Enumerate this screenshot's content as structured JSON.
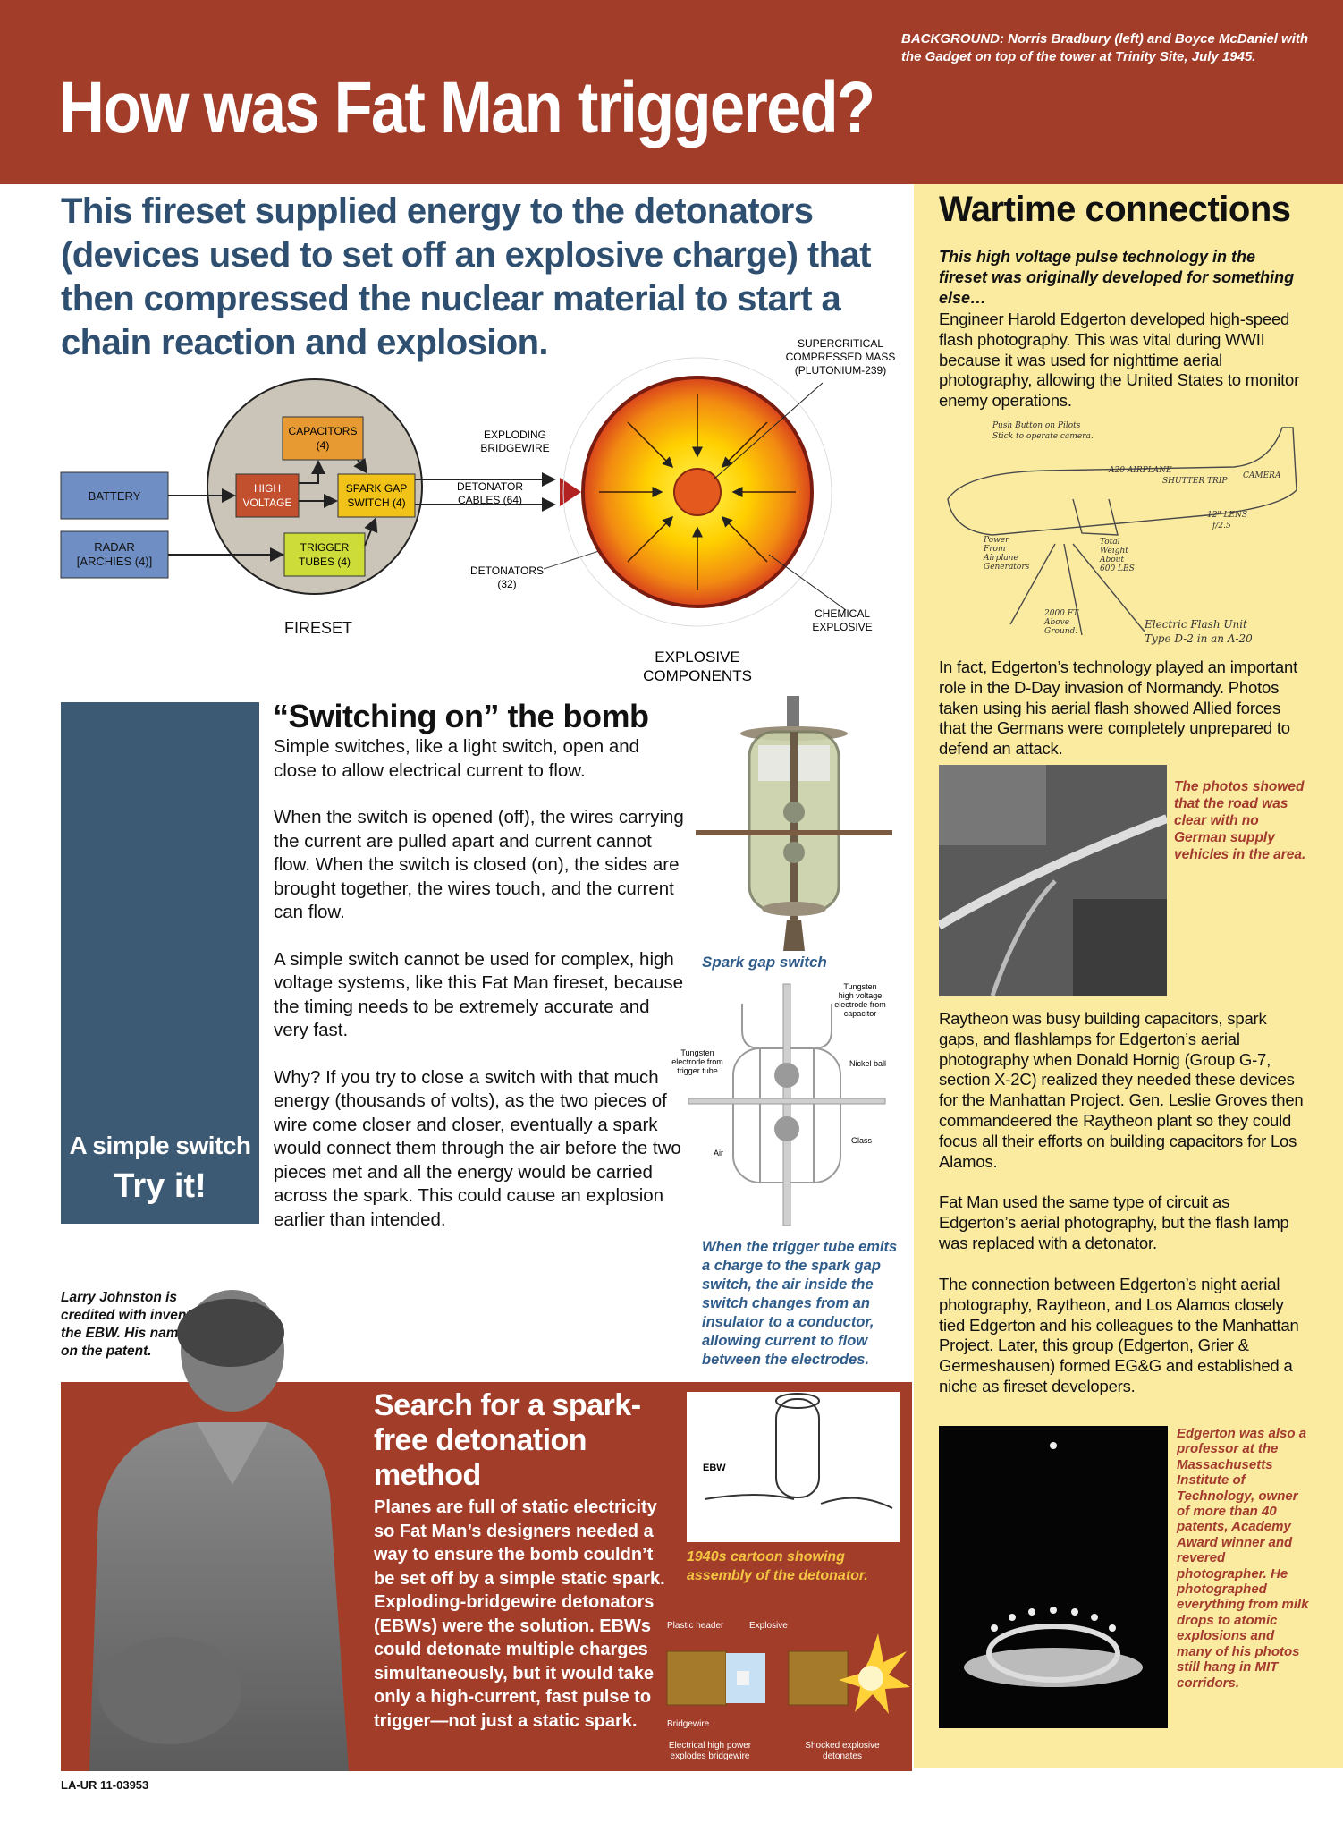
{
  "header": {
    "background_caption": "BACKGROUND:  Norris Bradbury (left) and Boyce McDaniel with the Gadget on top of the tower at Trinity Site, July 1945.",
    "title": "How was Fat Man triggered?"
  },
  "intro": {
    "text": "This fireset supplied energy to the detonators (devices used to set off an explosive charge) that then compressed the nuclear material to start a chain reaction and explosion."
  },
  "diagram": {
    "battery": "BATTERY",
    "radar_line1": "RADAR",
    "radar_line2": "[ARCHIES (4)]",
    "capacitors_line1": "CAPACITORS",
    "capacitors_line2": "(4)",
    "high_voltage_line1": "HIGH",
    "high_voltage_line2": "VOLTAGE",
    "spark_gap_line1": "SPARK GAP",
    "spark_gap_line2": "SWITCH (4)",
    "trigger_line1": "TRIGGER",
    "trigger_line2": "TUBES (4)",
    "fireset": "FIRESET",
    "exploding_line1": "EXPLODING",
    "exploding_line2": "BRIDGEWIRE",
    "detonator_cables_line1": "DETONATOR",
    "detonator_cables_line2": "CABLES (64)",
    "detonators_line1": "DETONATORS",
    "detonators_line2": "(32)",
    "supercritical_line1": "SUPERCRITICAL",
    "supercritical_line2": "COMPRESSED MASS",
    "supercritical_line3": "(PLUTONIUM-239)",
    "chemical_line1": "CHEMICAL",
    "chemical_line2": "EXPLOSIVE",
    "explosive_line1": "EXPLOSIVE",
    "explosive_line2": "COMPONENTS",
    "colors": {
      "blue_box": "#6f8fc4",
      "orange_box": "#e79a32",
      "red_box": "#c2502f",
      "yellow_box": "#cddc39",
      "circle": "#cbc4b8"
    }
  },
  "switching": {
    "panel_caption1": "A simple switch",
    "panel_caption2": "Try it!",
    "title": "“Switching on” the bomb",
    "paragraphs": [
      "Simple switches, like a light switch, open and close to allow electrical current to flow.",
      "When the switch is opened (off), the wires carrying the current are pulled apart and current cannot flow. When the switch is closed (on), the sides are brought together, the wires touch, and the current can flow.",
      "A simple switch cannot be used for complex, high voltage systems, like this Fat Man fireset, because the timing needs to be extremely accurate and very fast.",
      "Why? If you try to close a switch with that much energy (thousands of volts), as the two pieces of wire come closer and closer, eventually a spark would connect them through the air before the two pieces met and all the energy would be carried across the spark. This could cause an explosion earlier than intended."
    ],
    "spark_gap_caption": "Spark gap switch",
    "drawing_labels": {
      "tungsten_cap_1": "Tungsten",
      "tungsten_cap_2": "high voltage",
      "tungsten_cap_3": "electrode from",
      "tungsten_cap_4": "capacitor",
      "tungsten_trig_1": "Tungsten",
      "tungsten_trig_2": "electrode from",
      "tungsten_trig_3": "trigger tube",
      "nickel": "Nickel ball",
      "glass": "Glass",
      "air": "Air"
    },
    "trigger_caption": "When the trigger tube emits a charge to the spark gap switch, the air inside the switch changes from an insulator to a conductor, allowing current to flow between the electrodes."
  },
  "johnston": {
    "caption": "Larry Johnston is credited with inventing the EBW. His name is on the patent."
  },
  "search": {
    "title": "Search for a spark-free detonation method",
    "body": "Planes are full of static electricity so Fat Man’s designers needed a way to ensure the bomb couldn’t be set off by a simple static spark. Exploding-bridgewire detonators (EBWs) were the solution. EBWs could detonate multiple charges simultaneously, but it would take only a high-current, fast pulse to trigger—not just a static spark.",
    "cartoon_label": "EBW",
    "cartoon_caption": "1940s cartoon showing assembly of the detonator.",
    "det_labels": {
      "plastic_header": "Plastic header",
      "explosive": "Explosive",
      "bridgewire": "Bridgewire",
      "electrical_1": "Electrical high power",
      "electrical_2": "explodes bridgewire",
      "shocked_1": "Shocked explosive",
      "shocked_2": "detonates"
    }
  },
  "doc_id": "LA-UR 11-03953",
  "wartime": {
    "title": "Wartime connections",
    "lead": "This high voltage pulse technology in the fireset was originally developed for something else…",
    "p1": "Engineer Harold Edgerton developed high-speed flash photography. This was vital during WWII because it was used for nighttime aerial photography, allowing the United States to monitor enemy operations.",
    "sketch_labels": {
      "push_1": "Push Button on Pilots",
      "push_2": "Stick to operate camera.",
      "a20": "A20 AIRPLANE",
      "shutter": "SHUTTER TRIP",
      "camera": "CAMERA",
      "lens_1": "12\" LENS",
      "lens_2": "f/2.5",
      "power_1": "Power",
      "power_2": "From",
      "power_3": "Airplane",
      "power_4": "Generators",
      "total_1": "Total",
      "total_2": "Weight",
      "total_3": "About",
      "total_4": "600 LBS",
      "ground_1": "2000 FT",
      "ground_2": "Above",
      "ground_3": "Ground.",
      "flash_1": "Electric Flash Unit",
      "flash_2": "Type D-2 in an A-20"
    },
    "p2": "In fact, Edgerton’s technology played an important role in the D-Day invasion of Normandy. Photos taken using his aerial flash showed Allied forces that the Germans were completely unprepared to defend an attack.",
    "aerial_caption": "The photos showed that the road was clear with no German supply vehicles in the area.",
    "p3": "Raytheon was busy building capacitors, spark gaps, and flashlamps for Edgerton’s aerial photography when Donald Hornig (Group G-7, section X-2C) realized they needed these devices for the Manhattan Project. Gen. Leslie Groves then commandeered the Raytheon plant so they could focus all their efforts on building capacitors for Los Alamos.",
    "p4": "Fat Man used the same type of circuit as Edgerton’s aerial photography, but the flash lamp was replaced with a detonator.",
    "p5": "The connection between Edgerton’s night aerial photography, Raytheon, and Los Alamos closely tied Edgerton and his colleagues to the Manhattan Project. Later, this group (Edgerton, Grier & Germeshausen) formed EG&G and established a niche as fireset developers.",
    "milk_caption": "Edgerton was also a professor at the Massachusetts Institute of Technology, owner of more than 40 patents, Academy Award winner and revered photographer. He photographed everything from milk drops to atomic explosions and many of his photos still hang in MIT corridors."
  }
}
